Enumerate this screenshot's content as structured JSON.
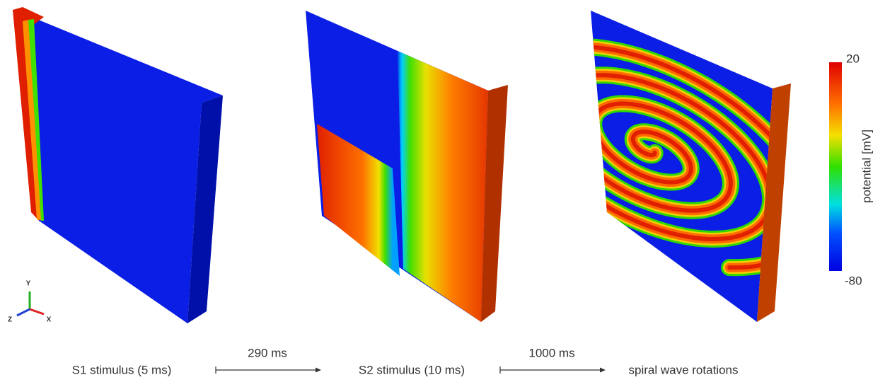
{
  "panels": [
    {
      "label": "S1 stimulus (5 ms)"
    },
    {
      "label": "S2 stimulus (10 ms)"
    },
    {
      "label": "spiral wave rotations"
    }
  ],
  "transitions": [
    {
      "label": "290 ms"
    },
    {
      "label": "1000 ms"
    }
  ],
  "colorbar": {
    "title": "potential [mV]",
    "max": "20",
    "min": "-80"
  },
  "axes_triad": {
    "x": "X",
    "y": "Y",
    "z": "Z"
  }
}
